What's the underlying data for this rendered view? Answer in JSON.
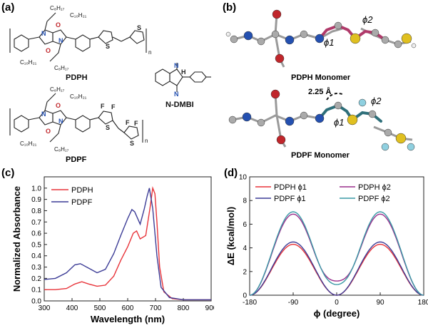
{
  "figure": {
    "panels": {
      "a": "(a)",
      "b": "(b)",
      "c": "(c)",
      "d": "(d)"
    },
    "structures": {
      "pdph_label": "PDPH",
      "pdpf_label": "PDPF",
      "ndmbi_label": "N-DMBI",
      "alkyl_c8": "C₈H₁₇",
      "alkyl_c10": "C₁₀H₂₁",
      "n_subscript": "n",
      "atom_N": "N",
      "atom_O": "O",
      "atom_S": "S",
      "atom_F": "F",
      "atom_H": "H"
    },
    "monomers": {
      "pdph_title": "PDPH Monomer",
      "pdpf_title": "PDPF Monomer",
      "distance_label": "2.25 Å",
      "phi1": "ϕ1",
      "phi2": "ϕ2"
    },
    "colors": {
      "pdph": "#e8343a",
      "pdpf": "#3c3c96",
      "pdph_phi2": "#9a2e8c",
      "pdpf_phi2": "#3a9aa6"
    }
  },
  "chart_data": [
    {
      "type": "line",
      "panel": "c",
      "xlabel": "Wavelength (nm)",
      "ylabel": "Normalized Absorbance",
      "xlim": [
        300,
        900
      ],
      "ylim": [
        0.0,
        1.1
      ],
      "xticks": [
        "300",
        "400",
        "500",
        "600",
        "700",
        "800",
        "900"
      ],
      "yticks": [
        "0.0",
        "0.1",
        "0.2",
        "0.3",
        "0.4",
        "0.5",
        "0.6",
        "0.7",
        "0.8",
        "0.9",
        "1.0"
      ],
      "legend": "top-left",
      "series": [
        {
          "name": "PDPH",
          "x": [
            300,
            340,
            380,
            410,
            435,
            460,
            490,
            520,
            550,
            575,
            600,
            620,
            632,
            645,
            665,
            680,
            690,
            698,
            705,
            715,
            730,
            760,
            800,
            850,
            900
          ],
          "y": [
            0.1,
            0.1,
            0.11,
            0.15,
            0.17,
            0.15,
            0.13,
            0.14,
            0.22,
            0.36,
            0.48,
            0.6,
            0.62,
            0.55,
            0.58,
            0.82,
            1.0,
            0.95,
            0.7,
            0.3,
            0.08,
            0.02,
            0.01,
            0.01,
            0.01
          ]
        },
        {
          "name": "PDPF",
          "x": [
            300,
            340,
            380,
            410,
            430,
            460,
            490,
            520,
            550,
            575,
            600,
            615,
            625,
            645,
            660,
            670,
            678,
            690,
            705,
            720,
            750,
            800,
            850,
            900
          ],
          "y": [
            0.19,
            0.2,
            0.25,
            0.32,
            0.33,
            0.29,
            0.25,
            0.28,
            0.42,
            0.58,
            0.73,
            0.81,
            0.79,
            0.68,
            0.82,
            0.93,
            1.0,
            0.82,
            0.4,
            0.12,
            0.03,
            0.01,
            0.01,
            0.01
          ]
        }
      ]
    },
    {
      "type": "line",
      "panel": "d",
      "xlabel": "ϕ (degree)",
      "ylabel": "ΔE (kcal/mol)",
      "xlim": [
        -180,
        180
      ],
      "ylim": [
        0,
        10
      ],
      "xticks": [
        "-180",
        "-90",
        "0",
        "90",
        "180"
      ],
      "yticks": [
        "0",
        "2",
        "4",
        "6",
        "8",
        "10"
      ],
      "legend": "top",
      "series": [
        {
          "name": "PDPH ϕ1",
          "amplitude": 4.3,
          "baseline": 0.0,
          "dip": 0.0
        },
        {
          "name": "PDPF ϕ1",
          "amplitude": 4.5,
          "baseline": 0.0,
          "dip": 0.0
        },
        {
          "name": "PDPH ϕ2",
          "amplitude": 6.85,
          "baseline": 0.0,
          "dip": 1.2
        },
        {
          "name": "PDPF ϕ2",
          "amplitude": 7.05,
          "baseline": 0.0,
          "dip": 0.9
        }
      ]
    }
  ]
}
